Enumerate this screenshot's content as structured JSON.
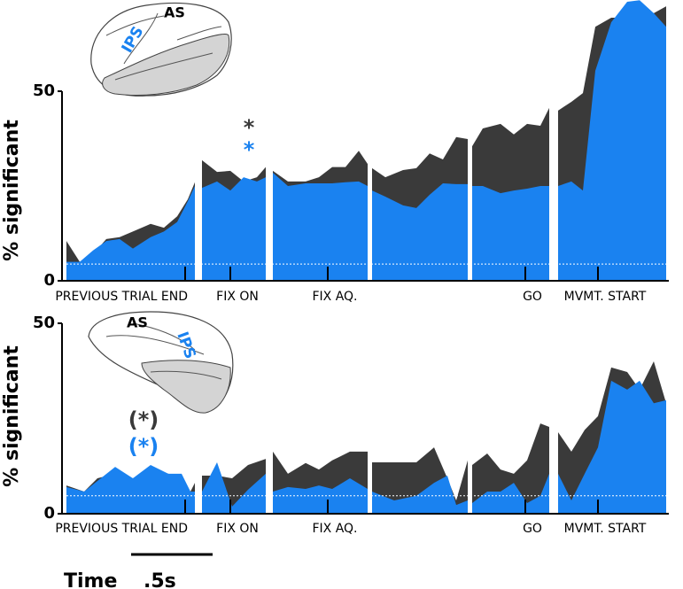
{
  "chart_data": [
    {
      "type": "area",
      "y_label": "% significant",
      "brain_labels": [
        "AS",
        "IPS"
      ],
      "annotations": [
        "*",
        "*"
      ],
      "threshold": 4.4,
      "xlim": [
        0,
        68
      ],
      "ylim": [
        0,
        74
      ],
      "yticks": [
        0,
        50
      ],
      "xticks": [
        {
          "value": 13.4,
          "label": "PREVIOUS TRIAL END"
        },
        {
          "value": 18.5,
          "label": "FIX ON"
        },
        {
          "value": 29.5,
          "label": "FIX AQ."
        },
        {
          "value": 51.8,
          "label": "GO"
        },
        {
          "value": 60,
          "label": "MVMT. START"
        }
      ],
      "x": [
        0,
        1.5,
        3,
        4.5,
        6,
        7.5,
        9.5,
        11,
        12.5,
        13.7,
        14.5,
        null,
        15.3,
        17,
        18.5,
        20,
        21.5,
        22.5,
        null,
        23.3,
        25,
        27,
        28.5,
        30,
        31.5,
        33,
        34,
        null,
        34.5,
        36,
        38,
        39.5,
        41,
        42.5,
        44,
        45.3,
        null,
        45.8,
        47,
        49,
        50.5,
        52,
        53.5,
        54.5,
        null,
        55.5,
        57,
        58.3,
        59.7,
        61.5,
        63.3,
        64.7,
        66.3,
        67.7
      ],
      "series": [
        {
          "color": "#3a3a3a",
          "values": [
            10.5,
            5,
            7,
            11,
            11.5,
            13,
            15,
            14,
            17,
            21.5,
            26,
            null,
            31.8,
            28.7,
            29,
            26.2,
            27.3,
            30,
            null,
            29,
            26.2,
            26.2,
            27.3,
            30,
            30,
            34.3,
            30.8,
            null,
            29.7,
            27.3,
            29.2,
            29.7,
            33.6,
            32,
            37.9,
            37.4,
            null,
            35.5,
            40.2,
            41.4,
            38.6,
            41.4,
            40.9,
            45.6,
            null,
            44.9,
            47.2,
            49.5,
            67,
            69.4,
            69.4,
            69.9,
            70.6,
            72.4
          ]
        },
        {
          "color": "#1a82f0",
          "values": [
            5,
            5,
            8,
            10.5,
            11,
            8.5,
            11.5,
            13,
            15.5,
            21,
            25,
            null,
            24.5,
            26.2,
            23.8,
            27.3,
            26.2,
            27.3,
            null,
            28.5,
            25,
            25.7,
            25.7,
            25.7,
            26,
            26.2,
            25,
            null,
            23.8,
            22.2,
            19.9,
            19.2,
            22.7,
            25.7,
            25.5,
            25.5,
            null,
            25,
            25,
            23.1,
            23.8,
            24.3,
            25,
            25,
            null,
            25,
            26.2,
            23.8,
            55.4,
            68.2,
            73.6,
            74,
            70.6,
            67
          ]
        }
      ]
    },
    {
      "type": "area",
      "y_label": "% significant",
      "brain_labels": [
        "AS",
        "IPS"
      ],
      "annotations": [
        "(*)",
        "(*)"
      ],
      "threshold": 4.7,
      "xlim": [
        0,
        68
      ],
      "ylim": [
        0,
        50
      ],
      "yticks": [
        0,
        50
      ],
      "xticks": [
        {
          "value": 13.4,
          "label": "PREVIOUS TRIAL END"
        },
        {
          "value": 18.5,
          "label": "FIX ON"
        },
        {
          "value": 29.5,
          "label": "FIX AQ."
        },
        {
          "value": 51.8,
          "label": "GO"
        },
        {
          "value": 60,
          "label": "MVMT. START"
        }
      ],
      "x": [
        0,
        2,
        3.5,
        5.5,
        7.5,
        9.5,
        11.5,
        13,
        14,
        14.5,
        null,
        15.3,
        17,
        18.7,
        20.5,
        22.5,
        null,
        23.3,
        25,
        27,
        28.5,
        30,
        32,
        34,
        null,
        34.5,
        37,
        39.5,
        41.5,
        43,
        44,
        45.3,
        null,
        45.8,
        47.5,
        49,
        50.5,
        52,
        53.5,
        54.5,
        null,
        55.5,
        57,
        58.5,
        60,
        61.5,
        63.3,
        64.7,
        66.3,
        67.7
      ],
      "series": [
        {
          "color": "#3a3a3a",
          "values": [
            7.4,
            5.8,
            9.3,
            10.5,
            9.3,
            11.6,
            10.5,
            9.8,
            5.8,
            8.1,
            null,
            10,
            10,
            9.3,
            12.8,
            14.4,
            null,
            16.3,
            10.5,
            13.3,
            11.6,
            14,
            16.3,
            16.3,
            null,
            13.5,
            13.5,
            13.5,
            17.4,
            9.3,
            3.5,
            14,
            null,
            12.8,
            15.8,
            11.6,
            10.5,
            14,
            23.7,
            22.8,
            null,
            21.4,
            16.3,
            22,
            25.6,
            38.4,
            37.2,
            32.6,
            40,
            29
          ]
        },
        {
          "color": "#1a82f0",
          "values": [
            7,
            5.8,
            8.6,
            12.3,
            9.3,
            12.8,
            10.5,
            10.5,
            5.8,
            5.8,
            null,
            5.8,
            13.5,
            1.9,
            6.3,
            10.5,
            null,
            5.8,
            7,
            6.5,
            7.4,
            6.5,
            9.3,
            6.5,
            null,
            5.8,
            3.5,
            4.7,
            8.1,
            10,
            2.3,
            3.5,
            null,
            2.8,
            5.8,
            5.8,
            8.1,
            2.8,
            4.7,
            10.5,
            null,
            10.5,
            3.5,
            10.5,
            17.4,
            34.9,
            32.6,
            34.9,
            29,
            29.8
          ]
        }
      ]
    }
  ],
  "scale_bar": {
    "title": "Time",
    "label": ".5s"
  }
}
